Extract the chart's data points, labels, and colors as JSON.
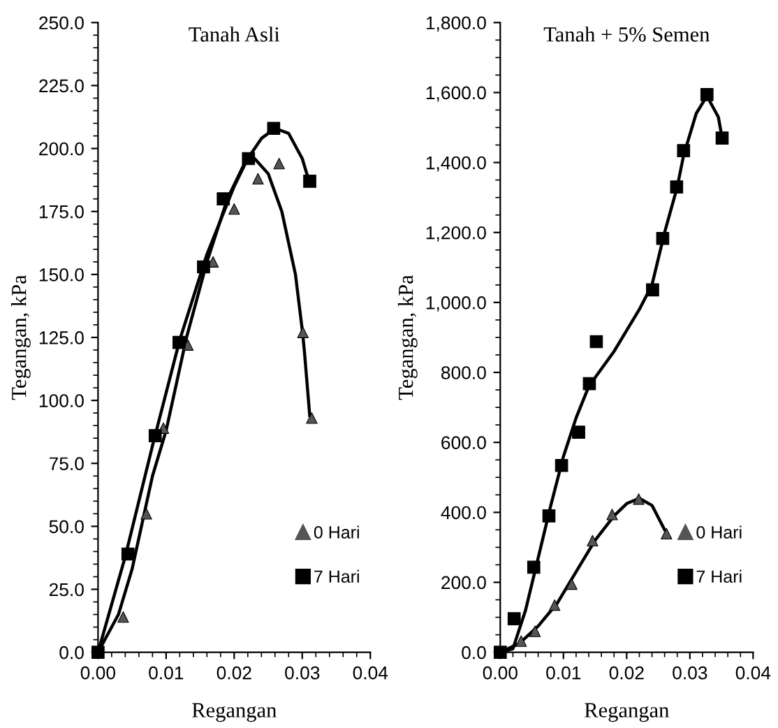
{
  "chart_data": [
    {
      "type": "scatter",
      "title": "Tanah Asli",
      "xlabel": "Regangan",
      "ylabel": "Tegangan, kPa",
      "xlim": [
        0,
        0.04
      ],
      "xticks": [
        {
          "value": 0,
          "label": "0.00"
        },
        {
          "value": 0.01,
          "label": "0.01"
        },
        {
          "value": 0.02,
          "label": "0.02"
        },
        {
          "value": 0.03,
          "label": "0.03"
        },
        {
          "value": 0.04,
          "label": "0.04"
        }
      ],
      "ylim": [
        0,
        250
      ],
      "yticks": [
        {
          "value": 0,
          "label": "0.0"
        },
        {
          "value": 25,
          "label": "25.0"
        },
        {
          "value": 50,
          "label": "50.0"
        },
        {
          "value": 75,
          "label": "75.0"
        },
        {
          "value": 100,
          "label": "100.0"
        },
        {
          "value": 125,
          "label": "125.0"
        },
        {
          "value": 150,
          "label": "150.0"
        },
        {
          "value": 175,
          "label": "175.0"
        },
        {
          "value": 200,
          "label": "200.0"
        },
        {
          "value": 225,
          "label": "225.0"
        },
        {
          "value": 250,
          "label": "250.0"
        }
      ],
      "grid": false,
      "legend": "bottom right",
      "series": [
        {
          "name": "0 Hari",
          "marker": "triangle",
          "color": "#555555",
          "x": [
            0.0037,
            0.0071,
            0.0096,
            0.0132,
            0.0169,
            0.02,
            0.0235,
            0.0266,
            0.0301,
            0.0314
          ],
          "values": [
            14,
            55,
            89,
            122,
            155,
            176,
            188,
            194,
            127,
            93
          ]
        },
        {
          "name": "7 Hari",
          "marker": "square",
          "color": "#000000",
          "x": [
            0,
            0.0044,
            0.0084,
            0.0119,
            0.0155,
            0.0184,
            0.0221,
            0.0258,
            0.0311
          ],
          "values": [
            0,
            39,
            86,
            123,
            153,
            180,
            196,
            208,
            187
          ]
        },
        {
          "type": "line",
          "marker": "none",
          "color": "#000000",
          "x": [
            0,
            0.003,
            0.005,
            0.008,
            0.01,
            0.013,
            0.016,
            0.019,
            0.0215,
            0.023,
            0.025,
            0.027,
            0.029,
            0.03,
            0.0303,
            0.0311
          ],
          "values": [
            0,
            15,
            33,
            70,
            88,
            125,
            155,
            180,
            194,
            196,
            190,
            175,
            150,
            128,
            120,
            94
          ]
        },
        {
          "type": "line",
          "marker": "none",
          "color": "#000000",
          "x": [
            0,
            0.004,
            0.008,
            0.012,
            0.016,
            0.02,
            0.022,
            0.024,
            0.026,
            0.028,
            0.03,
            0.031
          ],
          "values": [
            0,
            38,
            82,
            124,
            158,
            185,
            196,
            204,
            208,
            206,
            196,
            187
          ]
        }
      ]
    },
    {
      "type": "scatter",
      "title": "Tanah + 5% Semen",
      "xlabel": "Regangan",
      "ylabel": "Tegangan, kPa",
      "xlim": [
        0,
        0.04
      ],
      "xticks": [
        {
          "value": 0,
          "label": "0.00"
        },
        {
          "value": 0.01,
          "label": "0.01"
        },
        {
          "value": 0.02,
          "label": "0.02"
        },
        {
          "value": 0.03,
          "label": "0.03"
        },
        {
          "value": 0.04,
          "label": "0.04"
        }
      ],
      "ylim": [
        0,
        1800
      ],
      "yticks": [
        {
          "value": 0,
          "label": "0.0"
        },
        {
          "value": 200,
          "label": "200.0"
        },
        {
          "value": 400,
          "label": "400.0"
        },
        {
          "value": 600,
          "label": "600.0"
        },
        {
          "value": 800,
          "label": "800.0"
        },
        {
          "value": 1000,
          "label": "1,000.0"
        },
        {
          "value": 1200,
          "label": "1,200.0"
        },
        {
          "value": 1400,
          "label": "1,400.0"
        },
        {
          "value": 1600,
          "label": "1,600.0"
        },
        {
          "value": 1800,
          "label": "1,800.0"
        }
      ],
      "grid": false,
      "legend": "bottom right",
      "series": [
        {
          "name": "0 Hari",
          "marker": "triangle",
          "color": "#555555",
          "x": [
            0.0033,
            0.0055,
            0.0086,
            0.0113,
            0.0146,
            0.0177,
            0.0219,
            0.0263
          ],
          "values": [
            32,
            60,
            135,
            195,
            319,
            394,
            438,
            339
          ]
        },
        {
          "name": "7 Hari",
          "marker": "square",
          "color": "#000000",
          "x": [
            0,
            0.0022,
            0.0053,
            0.0077,
            0.0097,
            0.0124,
            0.0141,
            0.0152,
            0.0241,
            0.0257,
            0.0279,
            0.029,
            0.0327,
            0.0351
          ],
          "values": [
            0,
            96,
            243,
            390,
            534,
            629,
            768,
            888,
            1036,
            1183,
            1330,
            1434,
            1594,
            1470
          ]
        },
        {
          "type": "line",
          "marker": "none",
          "color": "#000000",
          "x": [
            0,
            0.003,
            0.006,
            0.009,
            0.012,
            0.015,
            0.018,
            0.02,
            0.022,
            0.024,
            0.026
          ],
          "values": [
            0,
            25,
            75,
            140,
            230,
            320,
            390,
            425,
            440,
            420,
            350
          ]
        },
        {
          "type": "line",
          "marker": "none",
          "color": "#000000",
          "x": [
            0,
            0.002,
            0.004,
            0.006,
            0.008,
            0.01,
            0.012,
            0.014,
            0.016,
            0.018,
            0.02,
            0.022,
            0.024,
            0.026,
            0.028,
            0.029,
            0.031,
            0.0327,
            0.0345,
            0.035
          ],
          "values": [
            0,
            10,
            120,
            270,
            420,
            560,
            670,
            760,
            810,
            860,
            920,
            980,
            1050,
            1200,
            1330,
            1420,
            1540,
            1590,
            1530,
            1480
          ]
        }
      ]
    }
  ]
}
